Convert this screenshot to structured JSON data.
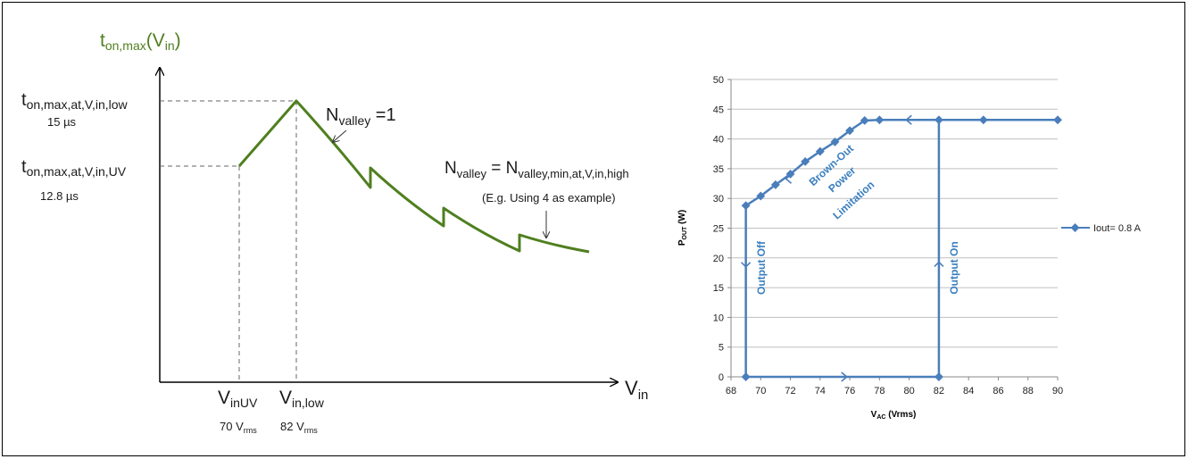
{
  "left_diagram": {
    "curve_color": "#4f7f1f",
    "y_title": {
      "main": "t",
      "sub": "on,max",
      "tail": "(V",
      "tail_sub": "in",
      "end": ")"
    },
    "x_axis_label": {
      "main": "V",
      "sub": "in"
    },
    "label_ton_low": {
      "main": "t",
      "sub": "on,max,at,V,in,low"
    },
    "label_ton_low_value": "15 µs",
    "label_ton_uv": {
      "main": "t",
      "sub": "on,max,at,V,in,UV"
    },
    "label_ton_uv_value": "12.8 µs",
    "label_vinuv": {
      "main": "V",
      "sub": "inUV"
    },
    "label_vinuv_value": {
      "main": "70 V",
      "sub": "rms"
    },
    "label_vinlow": {
      "main": "V",
      "sub": "in,low"
    },
    "label_vinlow_value": {
      "main": "82 V",
      "sub": "rms"
    },
    "label_nvalley1": {
      "main": "N",
      "sub": "valley",
      "tail": " =1"
    },
    "label_nvalley_min": {
      "main": "N",
      "sub": "valley",
      "mid": " = N",
      "mid_sub": "valley,min,at,V,in,high"
    },
    "label_example": "(E.g. Using 4 as example)"
  },
  "chart_data": {
    "type": "line",
    "xlabel": {
      "main": "V",
      "sub": "AC",
      "tail": " (Vrms)"
    },
    "ylabel": {
      "main": "P",
      "sub": "OUT",
      "tail": " (W)"
    },
    "xlim": [
      68,
      90
    ],
    "ylim": [
      0,
      50
    ],
    "x_ticks": [
      "68",
      "70",
      "72",
      "74",
      "76",
      "78",
      "80",
      "82",
      "84",
      "86",
      "88",
      "90"
    ],
    "y_ticks": [
      "0",
      "5",
      "10",
      "15",
      "20",
      "25",
      "30",
      "35",
      "40",
      "45",
      "50"
    ],
    "grid": "horizontal",
    "legend_position": "right",
    "series_color": "#4a7ebb",
    "series": [
      {
        "name": "Iout= 0.8 A",
        "x": [
          69,
          70,
          71,
          72,
          73,
          74,
          75,
          76,
          77,
          78,
          82,
          85,
          90
        ],
        "y": [
          28.8,
          30.4,
          32.3,
          34.1,
          36.2,
          37.9,
          39.5,
          41.4,
          43.1,
          43.2,
          43.2,
          43.2,
          43.2
        ]
      }
    ],
    "loop_points": [
      [
        69,
        0
      ],
      [
        82,
        0
      ]
    ],
    "annotations": [
      "Output Off",
      "Output On",
      "Brown-Out",
      "Power",
      "Limitation"
    ]
  }
}
